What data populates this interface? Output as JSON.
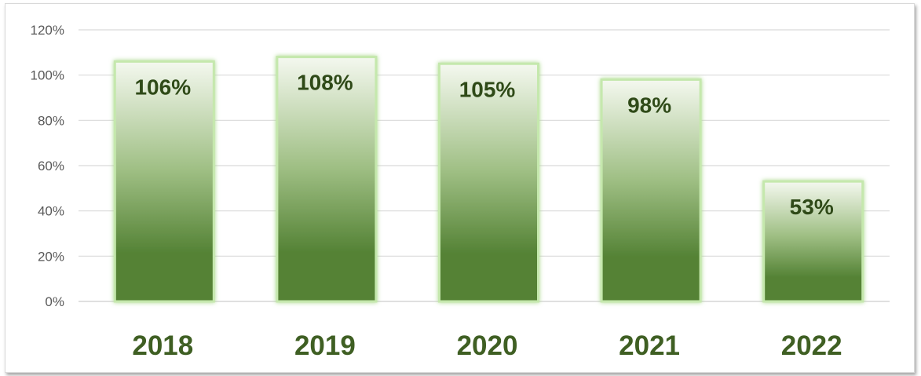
{
  "chart_data": {
    "type": "bar",
    "categories": [
      "2018",
      "2019",
      "2020",
      "2021",
      "2022"
    ],
    "values": [
      106,
      108,
      105,
      98,
      53
    ],
    "data_labels": [
      "106%",
      "108%",
      "105%",
      "98%",
      "53%"
    ],
    "title": "",
    "xlabel": "",
    "ylabel": "",
    "ylim": [
      0,
      120
    ],
    "y_ticks": [
      "0%",
      "20%",
      "40%",
      "60%",
      "80%",
      "100%",
      "120%"
    ],
    "y_tick_values": [
      0,
      20,
      40,
      60,
      80,
      100,
      120
    ],
    "grid": true,
    "legend": "none",
    "colors": {
      "bar_top": "#f4f8ef",
      "bar_bottom": "#548235",
      "bar_glow": "#a9d88b",
      "category_text": "#3f5f23",
      "label_text": "#2f4a18",
      "gridline": "#d9d9d9"
    }
  }
}
